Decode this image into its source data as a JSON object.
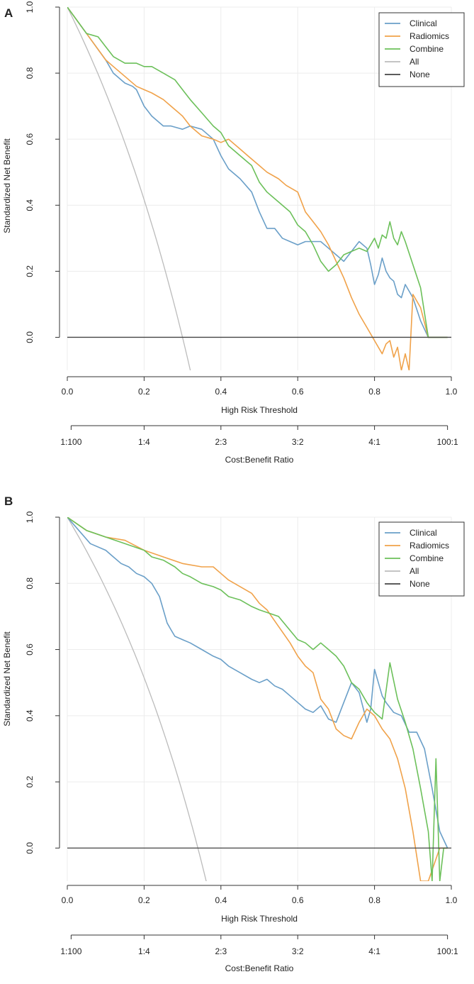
{
  "figure": {
    "background": "#ffffff"
  },
  "colors": {
    "clinical": "#6a9fc8",
    "radiomics": "#f0a24a",
    "combine": "#6cc05a",
    "all": "#bbbbbb",
    "none": "#444444",
    "grid": "#ececec",
    "axis": "#333333"
  },
  "chart_data": [
    {
      "panel_label": "A",
      "type": "line",
      "xlabel": "High Risk Threshold",
      "ylabel": "Standardized Net Benefit",
      "xlim": [
        0,
        1
      ],
      "ylim": [
        -0.1,
        1.0
      ],
      "xticks": [
        "0.0",
        "0.2",
        "0.4",
        "0.6",
        "0.8",
        "1.0"
      ],
      "yticks": [
        "0.0",
        "0.2",
        "0.4",
        "0.6",
        "0.8",
        "1.0"
      ],
      "cost_benefit": {
        "label": "Cost:Benefit Ratio",
        "ticks": [
          "1:100",
          "1:4",
          "2:3",
          "3:2",
          "4:1",
          "100:1"
        ]
      },
      "grid": true,
      "legend": {
        "position": "top-right",
        "entries": [
          "Clinical",
          "Radiomics",
          "Combine",
          "All",
          "None"
        ]
      },
      "prevalence": 0.3,
      "series": [
        {
          "name": "Clinical",
          "color_key": "clinical",
          "x": [
            0,
            0.05,
            0.1,
            0.12,
            0.15,
            0.17,
            0.18,
            0.2,
            0.22,
            0.25,
            0.27,
            0.3,
            0.32,
            0.35,
            0.38,
            0.4,
            0.42,
            0.45,
            0.48,
            0.5,
            0.52,
            0.54,
            0.56,
            0.58,
            0.6,
            0.62,
            0.64,
            0.66,
            0.68,
            0.7,
            0.72,
            0.74,
            0.76,
            0.78,
            0.79,
            0.8,
            0.81,
            0.82,
            0.83,
            0.84,
            0.85,
            0.86,
            0.87,
            0.88,
            0.9,
            0.92,
            0.94,
            0.97,
            0.99
          ],
          "y": [
            1.0,
            0.92,
            0.84,
            0.8,
            0.77,
            0.76,
            0.75,
            0.7,
            0.67,
            0.64,
            0.64,
            0.63,
            0.64,
            0.63,
            0.6,
            0.55,
            0.51,
            0.48,
            0.44,
            0.38,
            0.33,
            0.33,
            0.3,
            0.29,
            0.28,
            0.29,
            0.29,
            0.29,
            0.27,
            0.25,
            0.23,
            0.26,
            0.29,
            0.27,
            0.22,
            0.16,
            0.19,
            0.24,
            0.2,
            0.18,
            0.17,
            0.13,
            0.12,
            0.16,
            0.12,
            0.05,
            0.0,
            0.0,
            0.0
          ]
        },
        {
          "name": "Radiomics",
          "color_key": "radiomics",
          "x": [
            0,
            0.05,
            0.1,
            0.12,
            0.15,
            0.18,
            0.2,
            0.22,
            0.25,
            0.27,
            0.3,
            0.32,
            0.35,
            0.38,
            0.4,
            0.42,
            0.45,
            0.47,
            0.5,
            0.52,
            0.55,
            0.57,
            0.6,
            0.62,
            0.64,
            0.66,
            0.68,
            0.7,
            0.72,
            0.74,
            0.76,
            0.78,
            0.8,
            0.82,
            0.83,
            0.84,
            0.85,
            0.86,
            0.87,
            0.88,
            0.89,
            0.9,
            0.92,
            0.94,
            0.97,
            0.99
          ],
          "y": [
            1.0,
            0.92,
            0.84,
            0.82,
            0.79,
            0.76,
            0.75,
            0.74,
            0.72,
            0.7,
            0.67,
            0.64,
            0.61,
            0.6,
            0.59,
            0.6,
            0.57,
            0.55,
            0.52,
            0.5,
            0.48,
            0.46,
            0.44,
            0.38,
            0.35,
            0.32,
            0.28,
            0.23,
            0.18,
            0.12,
            0.07,
            0.03,
            -0.01,
            -0.05,
            -0.02,
            -0.01,
            -0.06,
            -0.03,
            -0.1,
            -0.05,
            -0.1,
            0.13,
            0.09,
            0.0,
            0.0,
            0.0
          ]
        },
        {
          "name": "Combine",
          "color_key": "combine",
          "x": [
            0,
            0.05,
            0.08,
            0.1,
            0.12,
            0.15,
            0.18,
            0.2,
            0.22,
            0.25,
            0.28,
            0.3,
            0.32,
            0.35,
            0.38,
            0.4,
            0.42,
            0.45,
            0.48,
            0.5,
            0.52,
            0.55,
            0.58,
            0.6,
            0.62,
            0.64,
            0.66,
            0.68,
            0.7,
            0.72,
            0.74,
            0.76,
            0.78,
            0.8,
            0.81,
            0.82,
            0.83,
            0.84,
            0.85,
            0.86,
            0.87,
            0.88,
            0.9,
            0.92,
            0.94,
            0.97,
            0.99
          ],
          "y": [
            1.0,
            0.92,
            0.91,
            0.88,
            0.85,
            0.83,
            0.83,
            0.82,
            0.82,
            0.8,
            0.78,
            0.75,
            0.72,
            0.68,
            0.64,
            0.62,
            0.58,
            0.55,
            0.52,
            0.47,
            0.44,
            0.41,
            0.38,
            0.34,
            0.32,
            0.28,
            0.23,
            0.2,
            0.22,
            0.25,
            0.26,
            0.27,
            0.26,
            0.3,
            0.27,
            0.31,
            0.3,
            0.35,
            0.3,
            0.28,
            0.32,
            0.29,
            0.22,
            0.15,
            0.0,
            0.0,
            0.0
          ]
        }
      ]
    },
    {
      "panel_label": "B",
      "type": "line",
      "xlabel": "High Risk Threshold",
      "ylabel": "Standardized Net Benefit",
      "xlim": [
        0,
        1
      ],
      "ylim": [
        -0.1,
        1.0
      ],
      "xticks": [
        "0.0",
        "0.2",
        "0.4",
        "0.6",
        "0.8",
        "1.0"
      ],
      "yticks": [
        "0.0",
        "0.2",
        "0.4",
        "0.6",
        "0.8",
        "1.0"
      ],
      "cost_benefit": {
        "label": "Cost:Benefit Ratio",
        "ticks": [
          "1:100",
          "1:4",
          "2:3",
          "3:2",
          "4:1",
          "100:1"
        ]
      },
      "grid": true,
      "legend": {
        "position": "top-right",
        "entries": [
          "Clinical",
          "Radiomics",
          "Combine",
          "All",
          "None"
        ]
      },
      "prevalence": 0.34,
      "series": [
        {
          "name": "Clinical",
          "color_key": "clinical",
          "x": [
            0,
            0.03,
            0.06,
            0.1,
            0.12,
            0.14,
            0.16,
            0.18,
            0.2,
            0.22,
            0.24,
            0.26,
            0.27,
            0.28,
            0.3,
            0.32,
            0.35,
            0.38,
            0.4,
            0.42,
            0.45,
            0.48,
            0.5,
            0.52,
            0.54,
            0.56,
            0.58,
            0.6,
            0.62,
            0.64,
            0.66,
            0.68,
            0.7,
            0.72,
            0.74,
            0.76,
            0.78,
            0.79,
            0.8,
            0.81,
            0.82,
            0.83,
            0.85,
            0.87,
            0.89,
            0.91,
            0.93,
            0.95,
            0.97,
            0.99
          ],
          "y": [
            1.0,
            0.96,
            0.92,
            0.9,
            0.88,
            0.86,
            0.85,
            0.83,
            0.82,
            0.8,
            0.76,
            0.68,
            0.66,
            0.64,
            0.63,
            0.62,
            0.6,
            0.58,
            0.57,
            0.55,
            0.53,
            0.51,
            0.5,
            0.51,
            0.49,
            0.48,
            0.46,
            0.44,
            0.42,
            0.41,
            0.43,
            0.39,
            0.38,
            0.44,
            0.5,
            0.47,
            0.38,
            0.42,
            0.54,
            0.5,
            0.46,
            0.44,
            0.41,
            0.4,
            0.35,
            0.35,
            0.3,
            0.18,
            0.05,
            0.0
          ]
        },
        {
          "name": "Radiomics",
          "color_key": "radiomics",
          "x": [
            0,
            0.05,
            0.1,
            0.15,
            0.2,
            0.25,
            0.3,
            0.35,
            0.38,
            0.4,
            0.42,
            0.45,
            0.48,
            0.5,
            0.52,
            0.55,
            0.58,
            0.6,
            0.62,
            0.64,
            0.66,
            0.68,
            0.7,
            0.72,
            0.74,
            0.76,
            0.78,
            0.8,
            0.82,
            0.84,
            0.86,
            0.88,
            0.9,
            0.92,
            0.94,
            0.97,
            0.99
          ],
          "y": [
            1.0,
            0.96,
            0.94,
            0.93,
            0.9,
            0.88,
            0.86,
            0.85,
            0.85,
            0.83,
            0.81,
            0.79,
            0.77,
            0.74,
            0.72,
            0.67,
            0.62,
            0.58,
            0.55,
            0.53,
            0.45,
            0.42,
            0.36,
            0.34,
            0.33,
            0.38,
            0.42,
            0.4,
            0.36,
            0.33,
            0.27,
            0.18,
            0.05,
            -0.1,
            -0.1,
            0.0,
            0.0
          ]
        },
        {
          "name": "Combine",
          "color_key": "combine",
          "x": [
            0,
            0.05,
            0.1,
            0.15,
            0.2,
            0.22,
            0.25,
            0.28,
            0.3,
            0.32,
            0.35,
            0.38,
            0.4,
            0.42,
            0.45,
            0.48,
            0.5,
            0.55,
            0.6,
            0.62,
            0.64,
            0.66,
            0.68,
            0.7,
            0.72,
            0.74,
            0.76,
            0.78,
            0.8,
            0.82,
            0.84,
            0.86,
            0.88,
            0.9,
            0.92,
            0.94,
            0.95,
            0.96,
            0.97,
            0.98,
            0.99
          ],
          "y": [
            1.0,
            0.96,
            0.94,
            0.92,
            0.9,
            0.88,
            0.87,
            0.85,
            0.83,
            0.82,
            0.8,
            0.79,
            0.78,
            0.76,
            0.75,
            0.73,
            0.72,
            0.7,
            0.63,
            0.62,
            0.6,
            0.62,
            0.6,
            0.58,
            0.55,
            0.5,
            0.48,
            0.44,
            0.41,
            0.39,
            0.56,
            0.45,
            0.38,
            0.3,
            0.18,
            0.05,
            -0.1,
            0.27,
            -0.1,
            0.0,
            0.0
          ]
        }
      ]
    }
  ]
}
